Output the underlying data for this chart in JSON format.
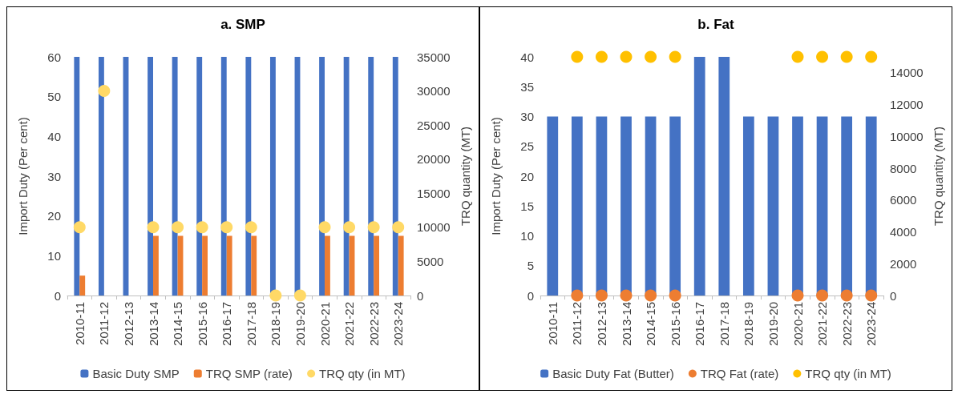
{
  "chart_data": [
    {
      "type": "bar",
      "title": "a. SMP",
      "ylabel": "Import Duty (Per cent)",
      "y2label": "TRQ quantity (MT)",
      "categories": [
        "2010-11",
        "2011-12",
        "2012-13",
        "2013-14",
        "2014-15",
        "2015-16",
        "2016-17",
        "2017-18",
        "2018-19",
        "2019-20",
        "2020-21",
        "2021-22",
        "2022-23",
        "2023-24"
      ],
      "series": [
        {
          "name": "Basic Duty SMP",
          "color": "#4472c4",
          "values": [
            60,
            60,
            60,
            60,
            60,
            60,
            60,
            60,
            60,
            60,
            60,
            60,
            60,
            60
          ]
        },
        {
          "name": "TRQ SMP (rate)",
          "color": "#ed7d31",
          "values": [
            5,
            null,
            null,
            15,
            15,
            15,
            15,
            15,
            null,
            null,
            15,
            15,
            15,
            15
          ]
        },
        {
          "name": "TRQ qty (in MT)",
          "type": "scatter",
          "axis": "y2",
          "color": "#ffd966",
          "values": [
            10000,
            30000,
            null,
            10000,
            10000,
            10000,
            10000,
            10000,
            0,
            0,
            10000,
            10000,
            10000,
            10000
          ]
        }
      ],
      "ylim": [
        0,
        60
      ],
      "yticks": [
        0,
        10,
        20,
        30,
        40,
        50,
        60
      ],
      "y2lim": [
        0,
        35000
      ],
      "y2ticks": [
        0,
        5000,
        10000,
        15000,
        20000,
        25000,
        30000,
        35000
      ],
      "grid": false,
      "legend": "bottom",
      "marker": "circle"
    },
    {
      "type": "bar",
      "title": "b. Fat",
      "ylabel": "Import Duty (Per cent)",
      "y2label": "TRQ quantity (MT)",
      "categories": [
        "2010-11",
        "2011-12",
        "2012-13",
        "2013-14",
        "2014-15",
        "2015-16",
        "2016-17",
        "2017-18",
        "2018-19",
        "2019-20",
        "2020-21",
        "2021-22",
        "2022-23",
        "2023-24"
      ],
      "series": [
        {
          "name": "Basic Duty Fat (Butter)",
          "color": "#4472c4",
          "values": [
            30,
            30,
            30,
            30,
            30,
            30,
            40,
            40,
            30,
            30,
            30,
            30,
            30,
            30
          ]
        },
        {
          "name": "TRQ Fat (rate)",
          "type": "scatter",
          "color": "#ed7d31",
          "values": [
            null,
            0,
            0,
            0,
            0,
            0,
            null,
            null,
            null,
            null,
            0,
            0,
            0,
            0
          ]
        },
        {
          "name": "TRQ qty (in MT)",
          "type": "scatter",
          "axis": "y2",
          "color": "#ffc000",
          "values": [
            null,
            15000,
            15000,
            15000,
            15000,
            15000,
            null,
            null,
            null,
            null,
            15000,
            15000,
            15000,
            15000
          ]
        }
      ],
      "ylim": [
        0,
        40
      ],
      "yticks": [
        0,
        5,
        10,
        15,
        20,
        25,
        30,
        35,
        40
      ],
      "y2lim": [
        0,
        15000
      ],
      "y2ticks": [
        0,
        2000,
        4000,
        6000,
        8000,
        10000,
        12000,
        14000
      ],
      "grid": false,
      "legend": "bottom",
      "marker": "circle"
    }
  ]
}
